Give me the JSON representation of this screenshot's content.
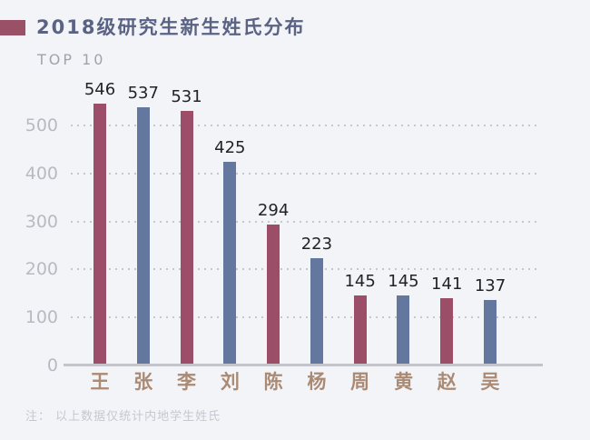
{
  "header": {
    "title": "2018级研究生新生姓氏分布",
    "subtitle": "TOP 10"
  },
  "footer": {
    "note": "注： 以上数据仅统计内地学生姓氏"
  },
  "colors": {
    "background": "#f3f4f8",
    "title_text": "#5a6384",
    "subtitle_text": "#9fa3ad",
    "marker": "#9a5168",
    "bar_maroon": "#9c4d68",
    "bar_blue": "#64779e",
    "value_label": "#232327",
    "x_label": "#ab8a74",
    "y_tick_label": "#b7bac0",
    "gridline": "#c7c8cd",
    "axis_line": "#c4c5ca",
    "note_text": "#c5c8d0"
  },
  "chart_data": {
    "type": "bar",
    "title": "2018级研究生新生姓氏分布",
    "subtitle": "TOP 10",
    "categories": [
      "王",
      "张",
      "李",
      "刘",
      "陈",
      "杨",
      "周",
      "黄",
      "赵",
      "吴"
    ],
    "values": [
      546,
      537,
      531,
      425,
      294,
      223,
      145,
      145,
      141,
      137
    ],
    "bar_color_pattern": [
      "#9c4d68",
      "#64779e"
    ],
    "xlabel": "",
    "ylabel": "",
    "ylim": [
      0,
      560
    ],
    "yticks": [
      0,
      100,
      200,
      300,
      400,
      500
    ],
    "grid": "horizontal-dotted",
    "legend": "none",
    "value_labels": "above-bars",
    "note": "注： 以上数据仅统计内地学生姓氏"
  }
}
